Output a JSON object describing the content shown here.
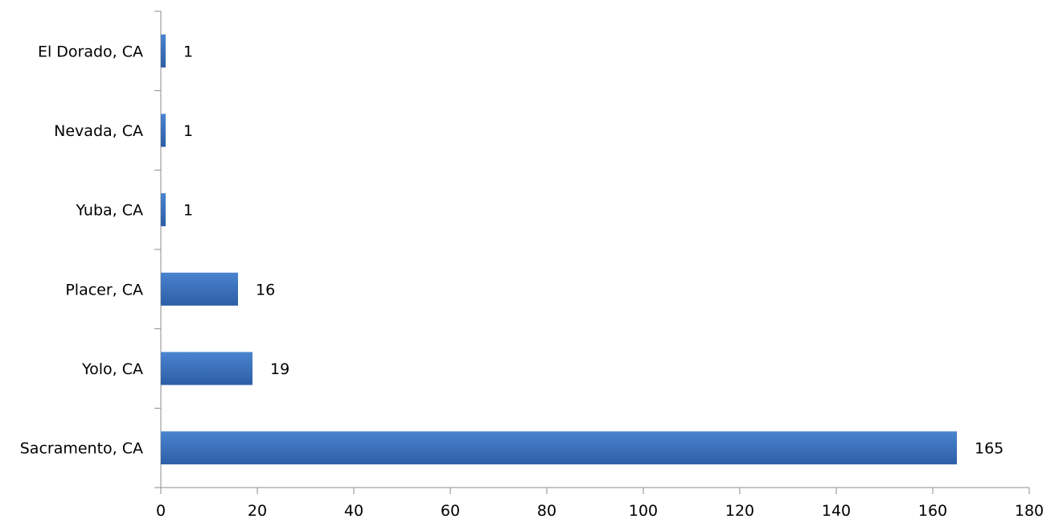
{
  "chart_data": {
    "type": "bar",
    "orientation": "horizontal",
    "categories": [
      "Sacramento, CA",
      "Yolo, CA",
      "Placer, CA",
      "Yuba, CA",
      "Nevada, CA",
      "El Dorado, CA"
    ],
    "values": [
      165,
      19,
      16,
      1,
      1,
      1
    ],
    "data_labels": [
      "165",
      "19",
      "16",
      "1",
      "1",
      "1"
    ],
    "title": "",
    "xlabel": "",
    "ylabel": "",
    "xlim": [
      0,
      180
    ],
    "xticks": [
      "0",
      "20",
      "40",
      "60",
      "80",
      "100",
      "120",
      "140",
      "160",
      "180"
    ],
    "grid": false,
    "legend": "none",
    "bar_color": "#3f73bd"
  }
}
